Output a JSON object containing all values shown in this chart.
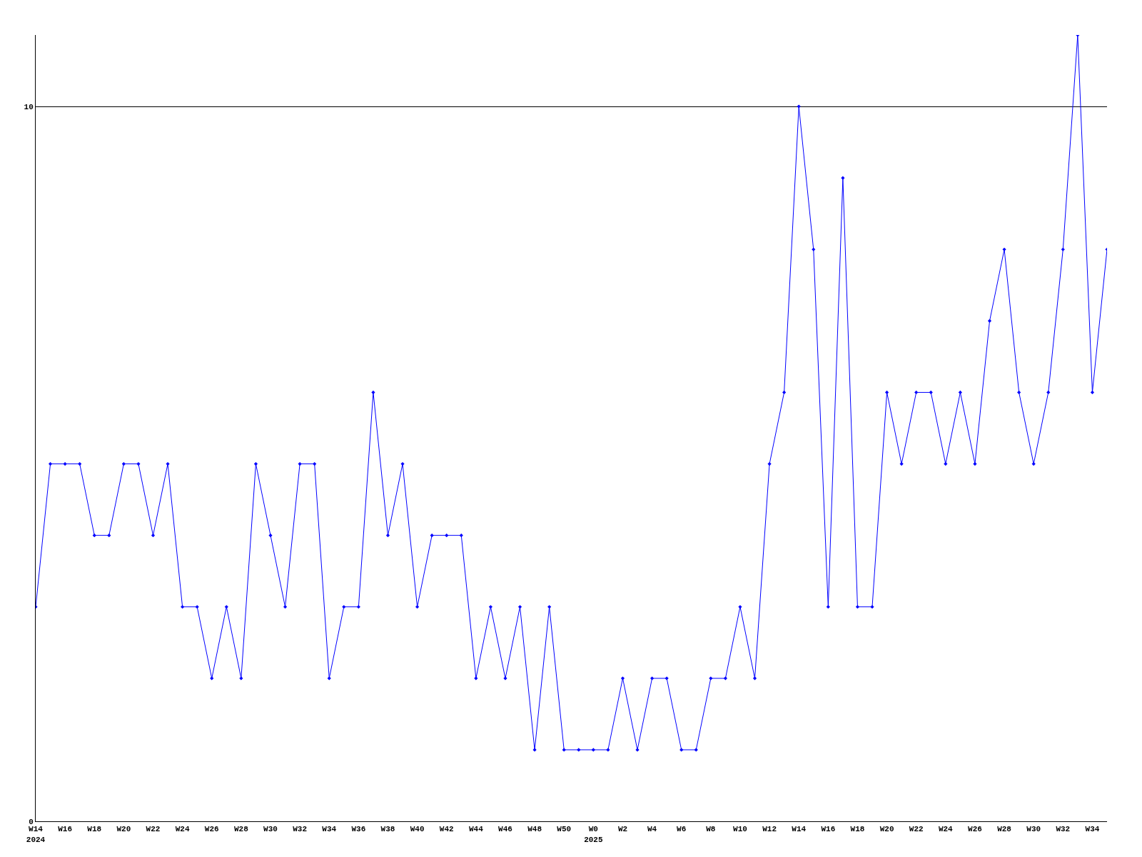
{
  "chart_data": {
    "type": "line",
    "categories": [
      "W14\n2024",
      null,
      "W16",
      null,
      "W18",
      null,
      "W20",
      null,
      "W22",
      null,
      "W24",
      null,
      "W26",
      null,
      "W28",
      null,
      "W30",
      null,
      "W32",
      null,
      "W34",
      null,
      "W36",
      null,
      "W38",
      null,
      "W40",
      null,
      "W42",
      null,
      "W44",
      null,
      "W46",
      null,
      "W48",
      null,
      "W50",
      null,
      "W0\n2025",
      null,
      "W2",
      null,
      "W4",
      null,
      "W6",
      null,
      "W8",
      null,
      "W10",
      null,
      "W12",
      null,
      "W14",
      null,
      "W16",
      null,
      "W18",
      null,
      "W20",
      null,
      "W22",
      null,
      "W24",
      null,
      "W26",
      null,
      "W28",
      null,
      "W30",
      null,
      "W32",
      null,
      "W34",
      null
    ],
    "series": [
      {
        "color": "#0000ff",
        "values": [
          3,
          5,
          5,
          5,
          4,
          4,
          5,
          5,
          4,
          5,
          3,
          3,
          2,
          3,
          2,
          5,
          4,
          3,
          5,
          5,
          2,
          3,
          3,
          6,
          4,
          5,
          3,
          4,
          4,
          4,
          2,
          3,
          2,
          3,
          1,
          3,
          1,
          1,
          1,
          1,
          2,
          1,
          2,
          2,
          1,
          1,
          2,
          2,
          3,
          2,
          5,
          6,
          10,
          8,
          3,
          9,
          3,
          3,
          6,
          5,
          6,
          6,
          5,
          6,
          5,
          7,
          8,
          6,
          5,
          6,
          8,
          11,
          6,
          8
        ]
      }
    ],
    "ylim": [
      0,
      11
    ],
    "yticks": [
      0,
      10
    ],
    "grid": "y",
    "marker": "diamond",
    "line_style": "solid"
  }
}
